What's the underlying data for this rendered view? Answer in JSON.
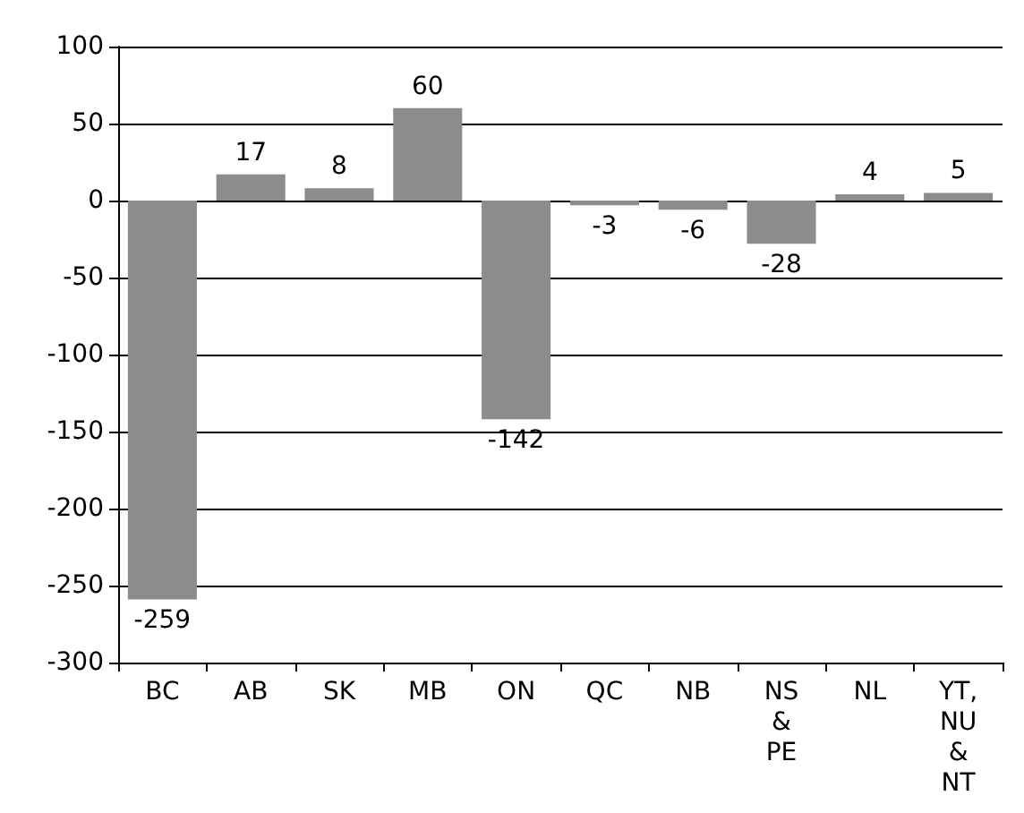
{
  "chart_data": {
    "type": "bar",
    "categories": [
      "BC",
      "AB",
      "SK",
      "MB",
      "ON",
      "QC",
      "NB",
      "NS\n&\nPE",
      "NL",
      "YT,\nNU\n&\nNT"
    ],
    "values": [
      -259,
      17,
      8,
      60,
      -142,
      -3,
      -6,
      -28,
      4,
      5
    ],
    "color": "#8c8c8c",
    "ylim": [
      -300,
      100
    ],
    "yticks": [
      -300,
      -250,
      -200,
      -150,
      -100,
      -50,
      0,
      50,
      100
    ],
    "grid": "y",
    "data_labels": true
  }
}
